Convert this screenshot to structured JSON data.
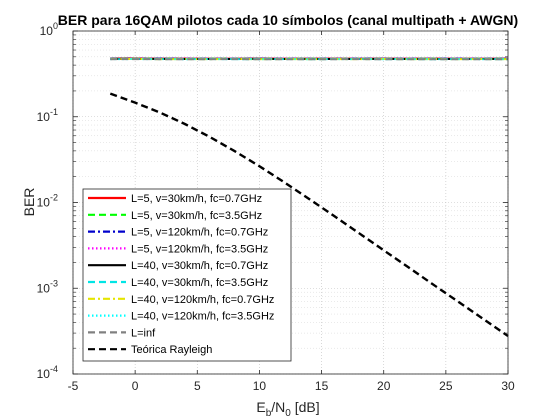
{
  "chart_data": {
    "type": "line",
    "title": "BER para 16QAM pilotos cada 10 símbolos (canal multipath + AWGN)",
    "xlabel": {
      "main": "E",
      "sub1": "b",
      "mid": "/N",
      "sub2": "0",
      "tail": " [dB]"
    },
    "ylabel": "BER",
    "xlim": [
      -5,
      30
    ],
    "ylim": [
      0.0001,
      1
    ],
    "yscale": "log",
    "grid": true,
    "minor_grid": true,
    "legend_position": "lower-left",
    "x_ticks": [
      "-5",
      "0",
      "5",
      "10",
      "15",
      "20",
      "25",
      "30"
    ],
    "y_ticks": [
      {
        "base": "10",
        "exp": "-4",
        "value": 0.0001
      },
      {
        "base": "10",
        "exp": "-3",
        "value": 0.001
      },
      {
        "base": "10",
        "exp": "-2",
        "value": 0.01
      },
      {
        "base": "10",
        "exp": "-1",
        "value": 0.1
      },
      {
        "base": "10",
        "exp": "0",
        "value": 1
      }
    ],
    "x": [
      -2,
      0,
      2,
      4,
      6,
      8,
      10,
      12,
      14,
      16,
      18,
      20,
      22,
      24,
      26,
      28,
      30
    ],
    "series": [
      {
        "name": "L=5, v=30km/h, fc=0.7GHz",
        "color": "#ff0000",
        "dash": "solid",
        "values": [
          0.478,
          0.479,
          0.477,
          0.478,
          0.476,
          0.477,
          0.478,
          0.476,
          0.477,
          0.478,
          0.476,
          0.477,
          0.476,
          0.478,
          0.477,
          0.476,
          0.477
        ]
      },
      {
        "name": "L=5, v=30km/h, fc=3.5GHz",
        "color": "#00ff00",
        "dash": "dashed",
        "values": [
          0.476,
          0.477,
          0.476,
          0.475,
          0.477,
          0.476,
          0.475,
          0.476,
          0.477,
          0.475,
          0.476,
          0.475,
          0.476,
          0.477,
          0.475,
          0.476,
          0.477
        ]
      },
      {
        "name": "L=5, v=120km/h, fc=0.7GHz",
        "color": "#0000cc",
        "dash": "dashdot",
        "values": [
          0.475,
          0.474,
          0.476,
          0.475,
          0.474,
          0.475,
          0.476,
          0.474,
          0.475,
          0.474,
          0.476,
          0.475,
          0.474,
          0.475,
          0.476,
          0.474,
          0.475
        ]
      },
      {
        "name": "L=5, v=120km/h, fc=3.5GHz",
        "color": "#ff00ff",
        "dash": "dotted",
        "values": [
          0.474,
          0.475,
          0.474,
          0.476,
          0.475,
          0.474,
          0.475,
          0.476,
          0.474,
          0.475,
          0.474,
          0.475,
          0.476,
          0.474,
          0.475,
          0.474,
          0.476
        ]
      },
      {
        "name": "L=40, v=30km/h, fc=0.7GHz",
        "color": "#000000",
        "dash": "solid",
        "values": [
          0.473,
          0.472,
          0.473,
          0.472,
          0.471,
          0.472,
          0.473,
          0.471,
          0.472,
          0.471,
          0.472,
          0.473,
          0.471,
          0.472,
          0.471,
          0.472,
          0.473
        ]
      },
      {
        "name": "L=40, v=30km/h, fc=3.5GHz",
        "color": "#00e5e5",
        "dash": "dashed",
        "values": [
          0.472,
          0.471,
          0.472,
          0.471,
          0.472,
          0.47,
          0.471,
          0.472,
          0.47,
          0.471,
          0.472,
          0.47,
          0.471,
          0.47,
          0.472,
          0.471,
          0.47
        ]
      },
      {
        "name": "L=40, v=120km/h, fc=0.7GHz",
        "color": "#e5e500",
        "dash": "dashdot",
        "values": [
          0.471,
          0.472,
          0.47,
          0.471,
          0.47,
          0.472,
          0.47,
          0.471,
          0.47,
          0.471,
          0.47,
          0.472,
          0.47,
          0.471,
          0.47,
          0.471,
          0.47
        ]
      },
      {
        "name": "L=40, v=120km/h, fc=3.5GHz",
        "color": "#00ffff",
        "dash": "dotted",
        "values": [
          0.47,
          0.471,
          0.47,
          0.469,
          0.47,
          0.471,
          0.469,
          0.47,
          0.469,
          0.47,
          0.471,
          0.469,
          0.47,
          0.469,
          0.47,
          0.469,
          0.47
        ]
      },
      {
        "name": "L=inf",
        "color": "#808080",
        "dash": "dashed",
        "values": [
          0.469,
          0.47,
          0.469,
          0.468,
          0.469,
          0.47,
          0.468,
          0.469,
          0.468,
          0.469,
          0.47,
          0.468,
          0.469,
          0.468,
          0.469,
          0.468,
          0.469
        ]
      },
      {
        "name": "Teórica Rayleigh",
        "color": "#000000",
        "dash": "dashed",
        "values": [
          0.186,
          0.146,
          0.112,
          0.0823,
          0.0582,
          0.0398,
          0.0265,
          0.0172,
          0.011,
          0.00698,
          0.0044,
          0.00277,
          0.00175,
          0.0011,
          0.000696,
          0.000439,
          0.000277
        ]
      }
    ]
  }
}
